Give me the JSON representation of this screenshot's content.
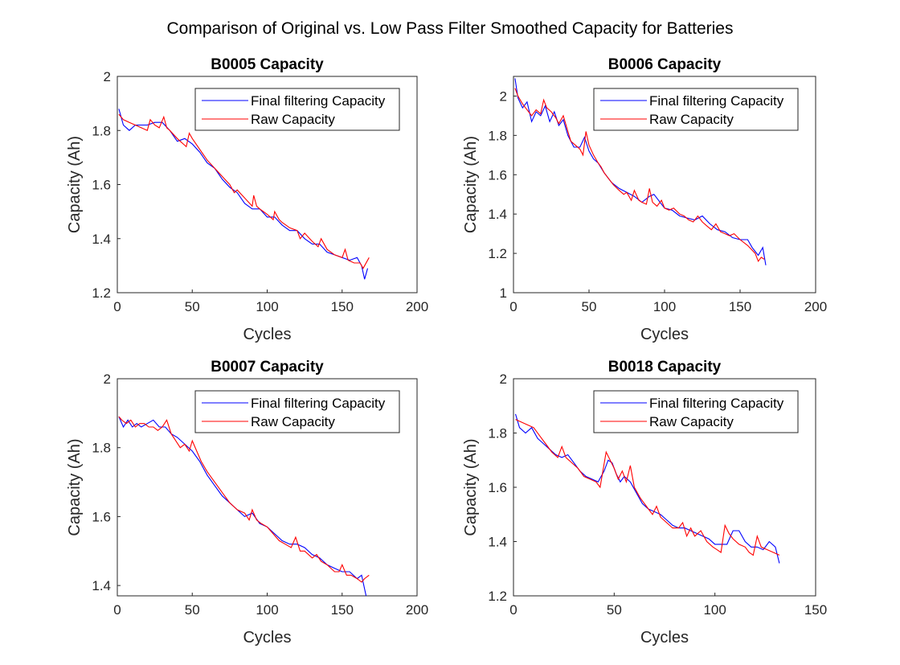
{
  "figure": {
    "title": "Comparison of Original vs. Low Pass Filter Smoothed Capacity for Batteries"
  },
  "chart_data": [
    {
      "type": "line",
      "title": "B0005 Capacity",
      "xlabel": "Cycles",
      "ylabel": "Capacity (Ah)",
      "xlim": [
        0,
        200
      ],
      "ylim": [
        1.2,
        2.0
      ],
      "xticks": [
        0,
        50,
        100,
        150,
        200
      ],
      "yticks": [
        1.2,
        1.4,
        1.6,
        1.8,
        2.0
      ],
      "ytick_labels": [
        "1.2",
        "1.4",
        "1.6",
        "1.8",
        "2"
      ],
      "grid": false,
      "legend_position": "top-right",
      "series": [
        {
          "name": "Final filtering Capacity",
          "color": "#0000ff",
          "x": [
            1,
            4,
            8,
            12,
            16,
            20,
            25,
            30,
            35,
            40,
            45,
            50,
            55,
            60,
            65,
            70,
            75,
            80,
            85,
            90,
            95,
            100,
            105,
            110,
            115,
            120,
            125,
            130,
            135,
            140,
            145,
            150,
            155,
            160,
            163,
            165,
            167
          ],
          "y": [
            1.88,
            1.82,
            1.8,
            1.82,
            1.82,
            1.82,
            1.83,
            1.83,
            1.8,
            1.76,
            1.77,
            1.75,
            1.72,
            1.68,
            1.66,
            1.62,
            1.59,
            1.57,
            1.53,
            1.51,
            1.51,
            1.48,
            1.48,
            1.45,
            1.43,
            1.43,
            1.4,
            1.38,
            1.38,
            1.35,
            1.34,
            1.33,
            1.32,
            1.33,
            1.3,
            1.25,
            1.29
          ]
        },
        {
          "name": "Raw Capacity",
          "color": "#ff0000",
          "x": [
            1,
            4,
            8,
            12,
            16,
            20,
            22,
            25,
            28,
            31,
            33,
            35,
            40,
            42,
            46,
            48,
            50,
            55,
            60,
            65,
            70,
            75,
            78,
            80,
            85,
            90,
            91,
            93,
            95,
            100,
            104,
            105,
            108,
            110,
            115,
            120,
            122,
            125,
            130,
            134,
            136,
            140,
            145,
            150,
            152,
            154,
            158,
            162,
            164,
            168
          ],
          "y": [
            1.86,
            1.84,
            1.83,
            1.82,
            1.81,
            1.8,
            1.84,
            1.82,
            1.81,
            1.85,
            1.81,
            1.8,
            1.77,
            1.76,
            1.74,
            1.79,
            1.77,
            1.73,
            1.69,
            1.66,
            1.63,
            1.6,
            1.57,
            1.58,
            1.55,
            1.52,
            1.56,
            1.52,
            1.51,
            1.49,
            1.47,
            1.5,
            1.47,
            1.46,
            1.44,
            1.43,
            1.4,
            1.42,
            1.39,
            1.37,
            1.4,
            1.36,
            1.34,
            1.33,
            1.36,
            1.32,
            1.31,
            1.31,
            1.29,
            1.33
          ]
        }
      ]
    },
    {
      "type": "line",
      "title": "B0006 Capacity",
      "xlabel": "Cycles",
      "ylabel": "Capacity (Ah)",
      "xlim": [
        0,
        200
      ],
      "ylim": [
        1.0,
        2.1
      ],
      "xticks": [
        0,
        50,
        100,
        150,
        200
      ],
      "yticks": [
        1.0,
        1.2,
        1.4,
        1.6,
        1.8,
        2.0
      ],
      "ytick_labels": [
        "1",
        "1.2",
        "1.4",
        "1.6",
        "1.8",
        "2"
      ],
      "grid": false,
      "legend_position": "top-right",
      "series": [
        {
          "name": "Final filtering Capacity",
          "color": "#0000ff",
          "x": [
            1,
            3,
            6,
            9,
            12,
            15,
            18,
            21,
            24,
            27,
            30,
            33,
            36,
            40,
            44,
            47,
            50,
            53,
            56,
            60,
            65,
            70,
            75,
            80,
            85,
            90,
            93,
            96,
            100,
            105,
            110,
            115,
            120,
            125,
            130,
            135,
            140,
            145,
            150,
            155,
            158,
            162,
            165,
            167
          ],
          "y": [
            2.09,
            1.99,
            1.94,
            1.97,
            1.87,
            1.92,
            1.9,
            1.95,
            1.87,
            1.92,
            1.85,
            1.88,
            1.8,
            1.74,
            1.74,
            1.79,
            1.72,
            1.68,
            1.66,
            1.61,
            1.56,
            1.53,
            1.51,
            1.49,
            1.46,
            1.49,
            1.5,
            1.47,
            1.43,
            1.42,
            1.39,
            1.38,
            1.37,
            1.39,
            1.35,
            1.32,
            1.31,
            1.28,
            1.27,
            1.27,
            1.23,
            1.19,
            1.23,
            1.14
          ]
        },
        {
          "name": "Raw Capacity",
          "color": "#ff0000",
          "x": [
            1,
            3,
            6,
            9,
            12,
            15,
            18,
            20,
            22,
            25,
            28,
            30,
            33,
            36,
            38,
            41,
            44,
            46,
            48,
            50,
            53,
            56,
            58,
            60,
            63,
            66,
            70,
            73,
            75,
            78,
            80,
            83,
            85,
            88,
            90,
            92,
            95,
            98,
            100,
            103,
            106,
            110,
            113,
            116,
            119,
            122,
            125,
            128,
            131,
            134,
            137,
            140,
            143,
            146,
            150,
            155,
            160,
            162,
            164,
            166
          ],
          "y": [
            2.04,
            2.0,
            1.96,
            1.93,
            1.9,
            1.93,
            1.91,
            1.98,
            1.94,
            1.92,
            1.89,
            1.86,
            1.9,
            1.82,
            1.77,
            1.75,
            1.73,
            1.7,
            1.82,
            1.75,
            1.7,
            1.66,
            1.64,
            1.61,
            1.58,
            1.55,
            1.52,
            1.5,
            1.51,
            1.47,
            1.52,
            1.47,
            1.46,
            1.45,
            1.53,
            1.46,
            1.44,
            1.47,
            1.43,
            1.42,
            1.43,
            1.4,
            1.39,
            1.37,
            1.36,
            1.39,
            1.36,
            1.34,
            1.32,
            1.35,
            1.31,
            1.3,
            1.29,
            1.3,
            1.27,
            1.24,
            1.2,
            1.16,
            1.18,
            1.17
          ]
        }
      ]
    },
    {
      "type": "line",
      "title": "B0007 Capacity",
      "xlabel": "Cycles",
      "ylabel": "Capacity (Ah)",
      "xlim": [
        0,
        200
      ],
      "ylim": [
        1.37,
        2.0
      ],
      "xticks": [
        0,
        50,
        100,
        150,
        200
      ],
      "yticks": [
        1.4,
        1.6,
        1.8,
        2.0
      ],
      "ytick_labels": [
        "1.4",
        "1.6",
        "1.8",
        "2"
      ],
      "grid": false,
      "legend_position": "top-right",
      "series": [
        {
          "name": "Final filtering Capacity",
          "color": "#0000ff",
          "x": [
            1,
            4,
            7,
            10,
            13,
            16,
            20,
            24,
            28,
            32,
            36,
            40,
            45,
            50,
            55,
            60,
            65,
            70,
            75,
            80,
            85,
            90,
            95,
            100,
            105,
            110,
            115,
            120,
            125,
            130,
            135,
            140,
            145,
            150,
            155,
            160,
            163,
            165,
            167
          ],
          "y": [
            1.89,
            1.86,
            1.88,
            1.86,
            1.87,
            1.86,
            1.87,
            1.88,
            1.86,
            1.86,
            1.84,
            1.83,
            1.81,
            1.79,
            1.76,
            1.72,
            1.69,
            1.66,
            1.64,
            1.62,
            1.6,
            1.61,
            1.58,
            1.57,
            1.55,
            1.53,
            1.52,
            1.52,
            1.51,
            1.49,
            1.48,
            1.46,
            1.45,
            1.44,
            1.44,
            1.42,
            1.43,
            1.39,
            1.35
          ]
        },
        {
          "name": "Raw Capacity",
          "color": "#ff0000",
          "x": [
            1,
            3,
            6,
            9,
            12,
            15,
            18,
            21,
            24,
            27,
            30,
            33,
            36,
            39,
            42,
            45,
            48,
            50,
            53,
            56,
            60,
            65,
            70,
            75,
            80,
            85,
            88,
            90,
            93,
            96,
            100,
            104,
            108,
            112,
            116,
            119,
            122,
            125,
            130,
            133,
            136,
            140,
            145,
            148,
            150,
            153,
            156,
            160,
            163,
            165,
            168
          ],
          "y": [
            1.89,
            1.88,
            1.87,
            1.88,
            1.86,
            1.87,
            1.87,
            1.86,
            1.86,
            1.85,
            1.86,
            1.88,
            1.84,
            1.82,
            1.8,
            1.81,
            1.79,
            1.82,
            1.79,
            1.76,
            1.73,
            1.7,
            1.67,
            1.64,
            1.62,
            1.61,
            1.59,
            1.62,
            1.59,
            1.58,
            1.57,
            1.55,
            1.53,
            1.52,
            1.51,
            1.54,
            1.5,
            1.5,
            1.48,
            1.49,
            1.47,
            1.46,
            1.44,
            1.44,
            1.46,
            1.43,
            1.43,
            1.42,
            1.41,
            1.42,
            1.43
          ]
        }
      ]
    },
    {
      "type": "line",
      "title": "B0018 Capacity",
      "xlabel": "Cycles",
      "ylabel": "Capacity (Ah)",
      "xlim": [
        0,
        150
      ],
      "ylim": [
        1.2,
        2.0
      ],
      "xticks": [
        0,
        50,
        100,
        150
      ],
      "yticks": [
        1.2,
        1.4,
        1.6,
        1.8,
        2.0
      ],
      "ytick_labels": [
        "1.2",
        "1.4",
        "1.6",
        "1.8",
        "2"
      ],
      "grid": false,
      "legend_position": "top-right",
      "series": [
        {
          "name": "Final filtering Capacity",
          "color": "#0000ff",
          "x": [
            1,
            3,
            6,
            9,
            12,
            15,
            18,
            21,
            24,
            27,
            30,
            33,
            36,
            39,
            42,
            45,
            47,
            49,
            51,
            53,
            55,
            58,
            61,
            64,
            67,
            70,
            73,
            76,
            79,
            82,
            85,
            88,
            91,
            94,
            97,
            100,
            103,
            106,
            109,
            112,
            115,
            118,
            121,
            124,
            127,
            130,
            132
          ],
          "y": [
            1.87,
            1.82,
            1.8,
            1.82,
            1.78,
            1.76,
            1.74,
            1.72,
            1.71,
            1.72,
            1.69,
            1.66,
            1.64,
            1.63,
            1.62,
            1.66,
            1.7,
            1.69,
            1.65,
            1.62,
            1.64,
            1.62,
            1.58,
            1.54,
            1.52,
            1.51,
            1.5,
            1.48,
            1.46,
            1.45,
            1.45,
            1.44,
            1.43,
            1.42,
            1.41,
            1.39,
            1.39,
            1.39,
            1.44,
            1.44,
            1.4,
            1.38,
            1.38,
            1.37,
            1.4,
            1.38,
            1.32
          ]
        },
        {
          "name": "Raw Capacity",
          "color": "#ff0000",
          "x": [
            1,
            4,
            7,
            10,
            13,
            16,
            19,
            22,
            24,
            26,
            29,
            32,
            35,
            38,
            41,
            43,
            46,
            48,
            50,
            52,
            54,
            56,
            58,
            60,
            63,
            66,
            69,
            71,
            73,
            76,
            79,
            82,
            84,
            86,
            88,
            90,
            93,
            96,
            99,
            101,
            103,
            105,
            107,
            109,
            112,
            115,
            117,
            119,
            121,
            123,
            126,
            129,
            132
          ],
          "y": [
            1.85,
            1.84,
            1.83,
            1.82,
            1.79,
            1.76,
            1.73,
            1.71,
            1.75,
            1.71,
            1.69,
            1.67,
            1.64,
            1.63,
            1.62,
            1.6,
            1.73,
            1.7,
            1.67,
            1.63,
            1.66,
            1.62,
            1.68,
            1.6,
            1.56,
            1.53,
            1.5,
            1.53,
            1.49,
            1.47,
            1.45,
            1.45,
            1.47,
            1.42,
            1.45,
            1.42,
            1.44,
            1.4,
            1.38,
            1.37,
            1.36,
            1.46,
            1.43,
            1.41,
            1.39,
            1.38,
            1.36,
            1.35,
            1.42,
            1.38,
            1.37,
            1.36,
            1.35
          ]
        }
      ]
    }
  ]
}
